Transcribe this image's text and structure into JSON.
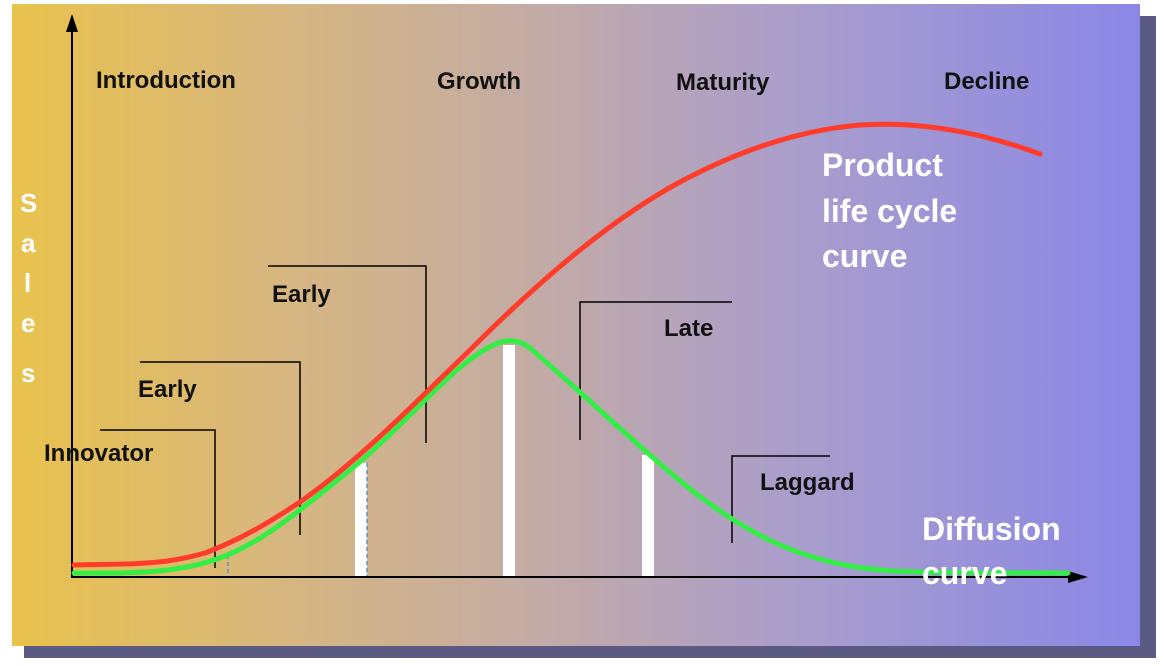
{
  "diagram": {
    "stages": [
      "Introduction",
      "Growth",
      "Maturity",
      "Decline"
    ],
    "y_axis_label_letters": [
      "S",
      "a",
      "l",
      "e",
      "s"
    ],
    "adopter_labels": {
      "innovator": "Innovator",
      "early_adopters": "Early",
      "early_majority": "Early",
      "late_majority": "Late",
      "laggard": "Laggard"
    },
    "curve_labels": {
      "product_life_cycle": [
        "Product",
        "life cycle",
        "curve"
      ],
      "diffusion": [
        "Diffusion",
        "curve"
      ]
    },
    "colors": {
      "product_life_cycle_curve": "#ff3b2a",
      "diffusion_curve": "#33ee44",
      "axis": "#000000",
      "divider_bars": "#ffffff"
    }
  }
}
